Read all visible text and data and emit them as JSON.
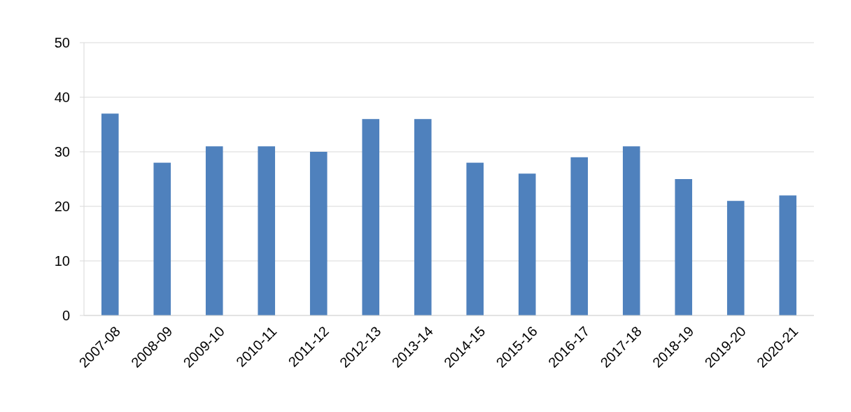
{
  "chart_data": {
    "type": "bar",
    "categories": [
      "2007-08",
      "2008-09",
      "2009-10",
      "2010-11",
      "2011-12",
      "2012-13",
      "2013-14",
      "2014-15",
      "2015-16",
      "2016-17",
      "2017-18",
      "2018-19",
      "2019-20",
      "2020-21"
    ],
    "values": [
      37,
      28,
      31,
      31,
      30,
      36,
      36,
      28,
      26,
      29,
      31,
      25,
      21,
      22
    ],
    "color": "#4f81bd",
    "ylim": [
      0,
      50
    ],
    "yticks": [
      0,
      10,
      20,
      30,
      40,
      50
    ],
    "grid": "y"
  }
}
